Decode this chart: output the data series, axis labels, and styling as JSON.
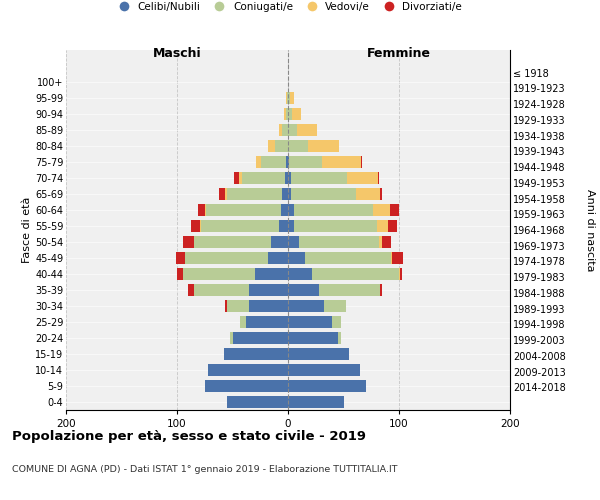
{
  "age_groups": [
    "0-4",
    "5-9",
    "10-14",
    "15-19",
    "20-24",
    "25-29",
    "30-34",
    "35-39",
    "40-44",
    "45-49",
    "50-54",
    "55-59",
    "60-64",
    "65-69",
    "70-74",
    "75-79",
    "80-84",
    "85-89",
    "90-94",
    "95-99",
    "100+"
  ],
  "birth_years": [
    "2014-2018",
    "2009-2013",
    "2004-2008",
    "1999-2003",
    "1994-1998",
    "1989-1993",
    "1984-1988",
    "1979-1983",
    "1974-1978",
    "1969-1973",
    "1964-1968",
    "1959-1963",
    "1954-1958",
    "1949-1953",
    "1944-1948",
    "1939-1943",
    "1934-1938",
    "1929-1933",
    "1924-1928",
    "1919-1923",
    "≤ 1918"
  ],
  "male": {
    "celibi": [
      55,
      75,
      72,
      58,
      50,
      38,
      35,
      35,
      30,
      18,
      15,
      8,
      6,
      5,
      3,
      2,
      0,
      0,
      0,
      0,
      0
    ],
    "coniugati": [
      0,
      0,
      0,
      0,
      2,
      5,
      20,
      50,
      65,
      75,
      70,
      70,
      68,
      50,
      38,
      22,
      12,
      5,
      2,
      1,
      0
    ],
    "vedovi": [
      0,
      0,
      0,
      0,
      0,
      0,
      0,
      0,
      0,
      0,
      0,
      1,
      1,
      2,
      3,
      5,
      6,
      3,
      2,
      1,
      0
    ],
    "divorziati": [
      0,
      0,
      0,
      0,
      0,
      0,
      2,
      5,
      5,
      8,
      10,
      8,
      6,
      5,
      5,
      0,
      0,
      0,
      0,
      0,
      0
    ]
  },
  "female": {
    "nubili": [
      50,
      70,
      65,
      55,
      45,
      40,
      32,
      28,
      22,
      15,
      10,
      5,
      5,
      3,
      3,
      1,
      0,
      0,
      0,
      0,
      0
    ],
    "coniugate": [
      0,
      0,
      0,
      0,
      3,
      8,
      20,
      55,
      78,
      78,
      72,
      75,
      72,
      58,
      50,
      30,
      18,
      8,
      4,
      2,
      0
    ],
    "vedove": [
      0,
      0,
      0,
      0,
      0,
      0,
      0,
      0,
      1,
      1,
      3,
      10,
      15,
      22,
      28,
      35,
      28,
      18,
      8,
      3,
      0
    ],
    "divorziate": [
      0,
      0,
      0,
      0,
      0,
      0,
      0,
      2,
      2,
      10,
      8,
      8,
      8,
      2,
      1,
      1,
      0,
      0,
      0,
      0,
      0
    ]
  },
  "colors": {
    "celibi": "#4a72aa",
    "coniugati": "#b8cc96",
    "vedovi": "#f5c76a",
    "divorziati": "#cc2222"
  },
  "xlim": [
    -200,
    200
  ],
  "xticks": [
    -200,
    -100,
    0,
    100,
    200
  ],
  "xticklabels": [
    "200",
    "100",
    "0",
    "100",
    "200"
  ],
  "title": "Popolazione per età, sesso e stato civile - 2019",
  "subtitle": "COMUNE DI AGNA (PD) - Dati ISTAT 1° gennaio 2019 - Elaborazione TUTTITALIA.IT",
  "ylabel_left": "Fasce di età",
  "ylabel_right": "Anni di nascita",
  "label_maschi": "Maschi",
  "label_femmine": "Femmine",
  "legend_labels": [
    "Celibi/Nubili",
    "Coniugati/e",
    "Vedovi/e",
    "Divorziati/e"
  ],
  "bg_color": "#f0f0f0"
}
